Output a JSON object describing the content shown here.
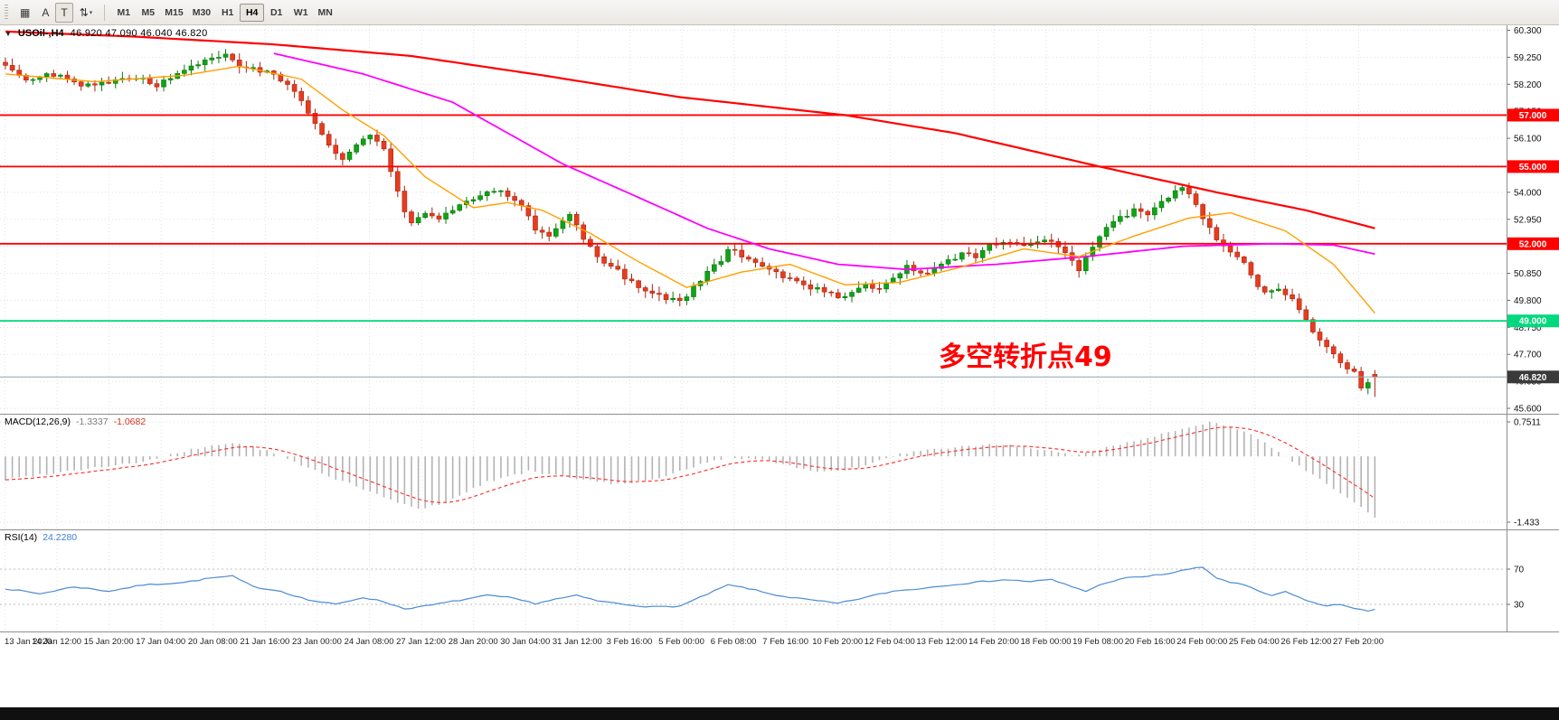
{
  "toolbar": {
    "icons": {
      "grid": "▦",
      "cursor": "A",
      "text": "T",
      "scale": "⇅",
      "caret": "▾"
    },
    "timeframes": [
      "M1",
      "M5",
      "M15",
      "M30",
      "H1",
      "H4",
      "D1",
      "W1",
      "MN"
    ],
    "selected_timeframe": "H4"
  },
  "chart": {
    "title_arrow": "▼",
    "symbol_label": "USOil-,H4",
    "ohlc_label": "46.920 47.090 46.040 46.820",
    "current_price_label": "46.820",
    "annotation": {
      "text": "多空转折点49",
      "color": "#ff0000"
    }
  },
  "chart_data": {
    "type": "candlestick",
    "symbol": "USOil-",
    "timeframe": "H4",
    "bars": 200,
    "price_scale": {
      "max": 60.3,
      "min": 45.6,
      "step": 1.05,
      "decimals": 3
    },
    "last_bar": {
      "open": 46.92,
      "high": 47.09,
      "low": 46.04,
      "close": 46.82
    },
    "colors": {
      "up": "#0fa315",
      "up_border": "#0a780e",
      "down": "#e73c1e",
      "down_border": "#a92410",
      "grid": "#e1e1e1",
      "current_line": "#8fa3b5",
      "current_tag_bg": "#3a3a3a"
    },
    "close_path": [
      [
        0,
        58.85
      ],
      [
        3,
        58.3
      ],
      [
        7,
        58.6
      ],
      [
        11,
        58.1
      ],
      [
        15,
        58.25
      ],
      [
        19,
        58.5
      ],
      [
        22,
        58.15
      ],
      [
        26,
        58.8
      ],
      [
        29,
        59.15
      ],
      [
        32,
        59.35
      ],
      [
        34,
        58.95
      ],
      [
        37,
        58.7
      ],
      [
        39,
        58.6
      ],
      [
        42,
        58.0
      ],
      [
        44,
        57.0
      ],
      [
        46,
        56.2
      ],
      [
        49,
        55.2
      ],
      [
        51,
        55.9
      ],
      [
        53,
        56.25
      ],
      [
        55,
        55.6
      ],
      [
        57,
        54.1
      ],
      [
        58,
        53.2
      ],
      [
        59,
        52.8
      ],
      [
        61,
        53.2
      ],
      [
        63,
        53.0
      ],
      [
        65,
        53.3
      ],
      [
        67,
        53.6
      ],
      [
        69,
        53.9
      ],
      [
        71,
        54.1
      ],
      [
        73,
        53.85
      ],
      [
        75,
        53.5
      ],
      [
        77,
        52.6
      ],
      [
        79,
        52.3
      ],
      [
        81,
        52.9
      ],
      [
        82,
        53.2
      ],
      [
        84,
        52.2
      ],
      [
        86,
        51.5
      ],
      [
        88,
        51.15
      ],
      [
        90,
        50.7
      ],
      [
        92,
        50.3
      ],
      [
        94,
        50.0
      ],
      [
        96,
        49.9
      ],
      [
        98,
        49.75
      ],
      [
        100,
        50.3
      ],
      [
        102,
        50.9
      ],
      [
        104,
        51.3
      ],
      [
        105,
        51.8
      ],
      [
        107,
        51.55
      ],
      [
        109,
        51.3
      ],
      [
        111,
        51.0
      ],
      [
        113,
        50.7
      ],
      [
        115,
        50.5
      ],
      [
        117,
        50.3
      ],
      [
        119,
        50.15
      ],
      [
        121,
        49.9
      ],
      [
        123,
        50.1
      ],
      [
        125,
        50.4
      ],
      [
        127,
        50.3
      ],
      [
        129,
        50.75
      ],
      [
        131,
        51.1
      ],
      [
        133,
        50.9
      ],
      [
        135,
        51.0
      ],
      [
        137,
        51.3
      ],
      [
        139,
        51.6
      ],
      [
        141,
        51.5
      ],
      [
        143,
        51.9
      ],
      [
        145,
        52.1
      ],
      [
        147,
        52.0
      ],
      [
        149,
        52.0
      ],
      [
        151,
        52.1
      ],
      [
        153,
        51.9
      ],
      [
        155,
        51.35
      ],
      [
        156,
        51.0
      ],
      [
        158,
        51.95
      ],
      [
        160,
        52.6
      ],
      [
        162,
        53.0
      ],
      [
        164,
        53.3
      ],
      [
        166,
        53.2
      ],
      [
        168,
        53.6
      ],
      [
        170,
        54.0
      ],
      [
        171,
        54.2
      ],
      [
        173,
        53.5
      ],
      [
        174,
        53.0
      ],
      [
        176,
        52.2
      ],
      [
        178,
        51.7
      ],
      [
        180,
        51.2
      ],
      [
        182,
        50.4
      ],
      [
        183,
        50.1
      ],
      [
        185,
        50.3
      ],
      [
        187,
        49.8
      ],
      [
        189,
        49.0
      ],
      [
        191,
        48.3
      ],
      [
        193,
        47.8
      ],
      [
        194,
        47.4
      ],
      [
        196,
        47.0
      ],
      [
        197,
        46.3
      ],
      [
        199,
        46.82
      ]
    ],
    "moving_averages": [
      {
        "name": "slow-ma",
        "color": "#ff0000",
        "width": 2.2,
        "path": [
          [
            0,
            60.25
          ],
          [
            19,
            60.05
          ],
          [
            39,
            59.75
          ],
          [
            59,
            59.3
          ],
          [
            78,
            58.55
          ],
          [
            98,
            57.7
          ],
          [
            122,
            57.0
          ],
          [
            138,
            56.3
          ],
          [
            159,
            55.0
          ],
          [
            176,
            54.0
          ],
          [
            189,
            53.3
          ],
          [
            199,
            52.6
          ]
        ]
      },
      {
        "name": "medium-ma",
        "color": "#ff00ff",
        "width": 1.8,
        "path": [
          [
            39,
            59.4
          ],
          [
            52,
            58.6
          ],
          [
            65,
            57.5
          ],
          [
            81,
            55.1
          ],
          [
            92,
            53.8
          ],
          [
            102,
            52.6
          ],
          [
            111,
            51.8
          ],
          [
            121,
            51.2
          ],
          [
            131,
            51.0
          ],
          [
            144,
            51.2
          ],
          [
            157,
            51.5
          ],
          [
            171,
            51.9
          ],
          [
            184,
            52.0
          ],
          [
            193,
            51.95
          ],
          [
            199,
            51.6
          ]
        ]
      },
      {
        "name": "fast-ma",
        "color": "#ffa000",
        "width": 1.4,
        "path": [
          [
            0,
            58.6
          ],
          [
            13,
            58.3
          ],
          [
            26,
            58.55
          ],
          [
            34,
            58.9
          ],
          [
            43,
            58.4
          ],
          [
            49,
            57.2
          ],
          [
            55,
            56.2
          ],
          [
            61,
            54.6
          ],
          [
            68,
            53.4
          ],
          [
            73,
            53.6
          ],
          [
            78,
            53.3
          ],
          [
            85,
            52.4
          ],
          [
            92,
            51.3
          ],
          [
            99,
            50.3
          ],
          [
            107,
            50.9
          ],
          [
            114,
            51.2
          ],
          [
            122,
            50.4
          ],
          [
            130,
            50.5
          ],
          [
            139,
            51.1
          ],
          [
            148,
            51.8
          ],
          [
            156,
            51.5
          ],
          [
            164,
            52.3
          ],
          [
            172,
            53.0
          ],
          [
            178,
            53.2
          ],
          [
            186,
            52.5
          ],
          [
            193,
            51.2
          ],
          [
            199,
            49.3
          ]
        ]
      }
    ],
    "levels": [
      {
        "price": 57.0,
        "label": "57.000",
        "color": "#ff0000"
      },
      {
        "price": 55.0,
        "label": "55.000",
        "color": "#ff0000"
      },
      {
        "price": 52.0,
        "label": "52.000",
        "color": "#ff0000"
      },
      {
        "price": 49.0,
        "label": "49.000",
        "color": "#00d97e"
      }
    ],
    "macd": {
      "label": "MACD(12,26,9)",
      "value": "-1.3337",
      "signal_value": "-1.0682",
      "max": 0.7511,
      "min": -1.433,
      "scale_max_label": "0.7511",
      "scale_min_label": "-1.433",
      "histogram_color": "#b3b3b3",
      "signal_color": "#ff2a2a",
      "path": [
        [
          0,
          -0.5
        ],
        [
          10,
          -0.3
        ],
        [
          20,
          -0.12
        ],
        [
          28,
          0.18
        ],
        [
          33,
          0.3
        ],
        [
          38,
          0.12
        ],
        [
          44,
          -0.25
        ],
        [
          50,
          -0.6
        ],
        [
          56,
          -0.95
        ],
        [
          60,
          -1.15
        ],
        [
          64,
          -1.0
        ],
        [
          70,
          -0.55
        ],
        [
          76,
          -0.33
        ],
        [
          82,
          -0.45
        ],
        [
          88,
          -0.6
        ],
        [
          95,
          -0.5
        ],
        [
          100,
          -0.22
        ],
        [
          105,
          -0.02
        ],
        [
          110,
          -0.06
        ],
        [
          118,
          -0.35
        ],
        [
          124,
          -0.25
        ],
        [
          130,
          0.05
        ],
        [
          138,
          0.2
        ],
        [
          145,
          0.27
        ],
        [
          150,
          0.15
        ],
        [
          155,
          0.02
        ],
        [
          160,
          0.2
        ],
        [
          166,
          0.4
        ],
        [
          172,
          0.65
        ],
        [
          175,
          0.7511
        ],
        [
          180,
          0.55
        ],
        [
          184,
          0.2
        ],
        [
          188,
          -0.2
        ],
        [
          192,
          -0.6
        ],
        [
          196,
          -1.0
        ],
        [
          199,
          -1.3337
        ]
      ]
    },
    "rsi": {
      "label": "RSI(14)",
      "value": "24.2280",
      "color": "#4a8bd4",
      "levels": [
        70,
        30
      ],
      "path": [
        [
          0,
          48
        ],
        [
          5,
          42
        ],
        [
          10,
          50
        ],
        [
          15,
          45
        ],
        [
          20,
          52
        ],
        [
          26,
          55
        ],
        [
          30,
          60
        ],
        [
          33,
          62
        ],
        [
          36,
          50
        ],
        [
          40,
          45
        ],
        [
          44,
          35
        ],
        [
          48,
          30
        ],
        [
          52,
          38
        ],
        [
          55,
          33
        ],
        [
          58,
          25
        ],
        [
          61,
          28
        ],
        [
          64,
          32
        ],
        [
          67,
          36
        ],
        [
          70,
          40
        ],
        [
          73,
          38
        ],
        [
          77,
          31
        ],
        [
          80,
          36
        ],
        [
          83,
          40
        ],
        [
          86,
          34
        ],
        [
          90,
          30
        ],
        [
          94,
          27
        ],
        [
          98,
          28
        ],
        [
          101,
          38
        ],
        [
          105,
          52
        ],
        [
          108,
          48
        ],
        [
          111,
          42
        ],
        [
          114,
          38
        ],
        [
          117,
          35
        ],
        [
          121,
          31
        ],
        [
          125,
          38
        ],
        [
          129,
          45
        ],
        [
          133,
          48
        ],
        [
          137,
          52
        ],
        [
          141,
          55
        ],
        [
          145,
          58
        ],
        [
          149,
          56
        ],
        [
          152,
          58
        ],
        [
          155,
          50
        ],
        [
          157,
          45
        ],
        [
          160,
          55
        ],
        [
          163,
          60
        ],
        [
          166,
          62
        ],
        [
          169,
          65
        ],
        [
          172,
          70
        ],
        [
          174,
          72
        ],
        [
          176,
          60
        ],
        [
          178,
          55
        ],
        [
          180,
          52
        ],
        [
          182,
          45
        ],
        [
          184,
          40
        ],
        [
          186,
          44
        ],
        [
          188,
          38
        ],
        [
          190,
          32
        ],
        [
          192,
          28
        ],
        [
          194,
          30
        ],
        [
          196,
          26
        ],
        [
          198,
          22
        ],
        [
          199,
          24.228
        ]
      ]
    },
    "time_axis": {
      "labels": [
        "13 Jan 2020",
        "14 Jan 12:00",
        "15 Jan 20:00",
        "17 Jan 04:00",
        "20 Jan 08:00",
        "21 Jan 16:00",
        "23 Jan 00:00",
        "24 Jan 08:00",
        "27 Jan 12:00",
        "28 Jan 20:00",
        "30 Jan 04:00",
        "31 Jan 12:00",
        "3 Feb 16:00",
        "5 Feb 00:00",
        "6 Feb 08:00",
        "7 Feb 16:00",
        "10 Feb 20:00",
        "12 Feb 04:00",
        "13 Feb 12:00",
        "14 Feb 20:00",
        "18 Feb 00:00",
        "19 Feb 08:00",
        "20 Feb 16:00",
        "24 Feb 00:00",
        "25 Feb 04:00",
        "26 Feb 12:00",
        "27 Feb 20:00"
      ]
    }
  }
}
